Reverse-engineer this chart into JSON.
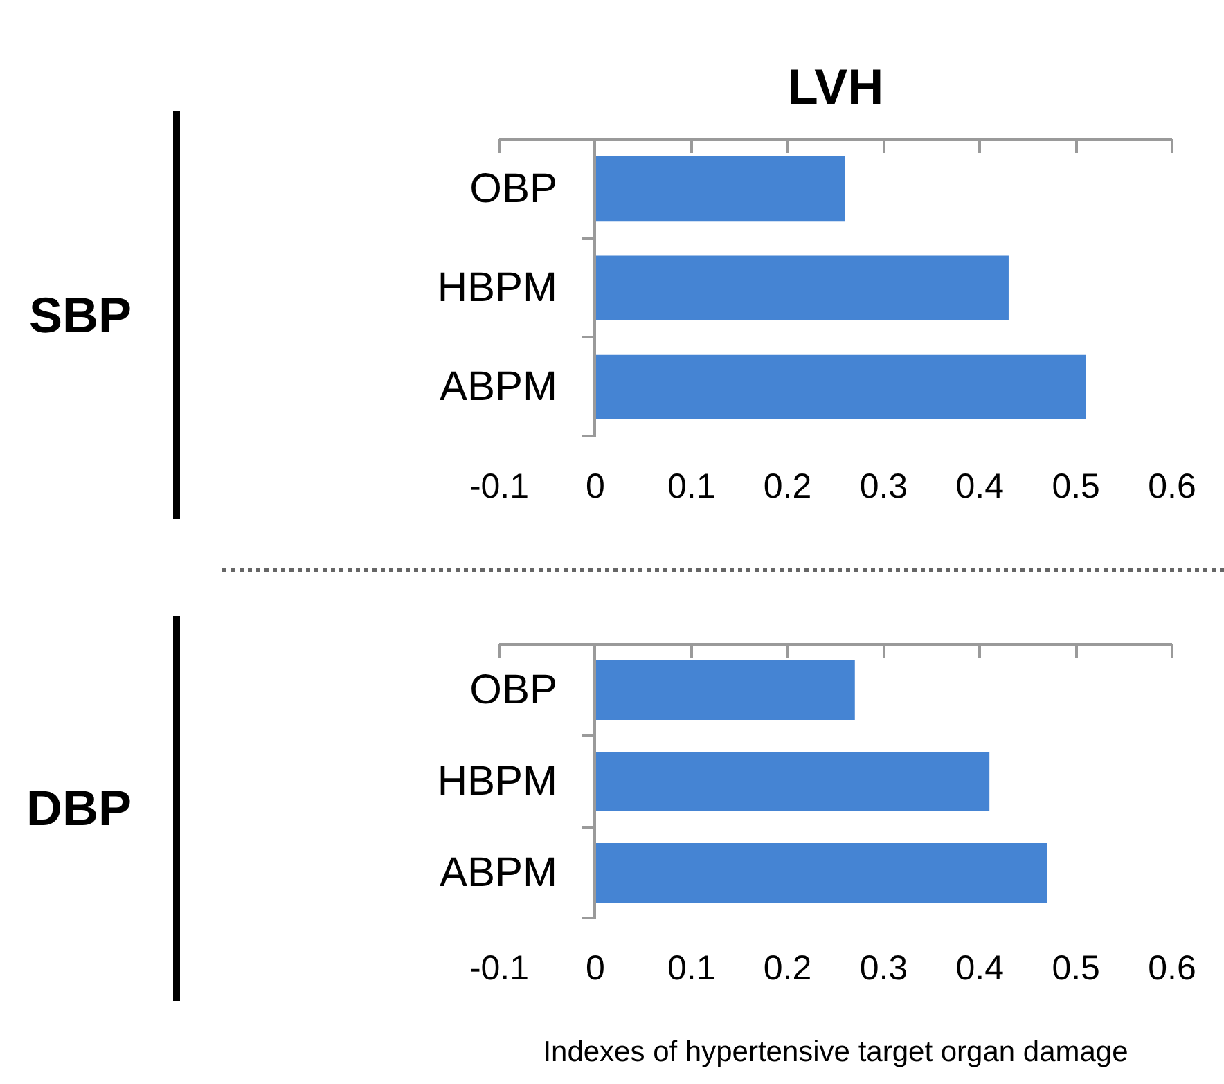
{
  "chart_data": [
    {
      "type": "bar",
      "orientation": "horizontal",
      "title": "LVH",
      "ylabel": "SBP",
      "categories": [
        "OBP",
        "HBPM",
        "ABPM"
      ],
      "values": [
        0.26,
        0.43,
        0.51
      ],
      "color": "#4584d3",
      "xlim": [
        -0.1,
        0.6
      ],
      "xticks": [
        -0.1,
        0,
        0.1,
        0.2,
        0.3,
        0.4,
        0.5,
        0.6
      ],
      "grid": false
    },
    {
      "type": "bar",
      "orientation": "horizontal",
      "ylabel": "DBP",
      "xlabel": "Indexes of hypertensive target organ damage",
      "categories": [
        "OBP",
        "HBPM",
        "ABPM"
      ],
      "values": [
        0.27,
        0.41,
        0.47
      ],
      "color": "#4584d3",
      "xlim": [
        -0.1,
        0.6
      ],
      "xticks": [
        -0.1,
        0,
        0.1,
        0.2,
        0.3,
        0.4,
        0.5,
        0.6
      ],
      "grid": false
    }
  ]
}
